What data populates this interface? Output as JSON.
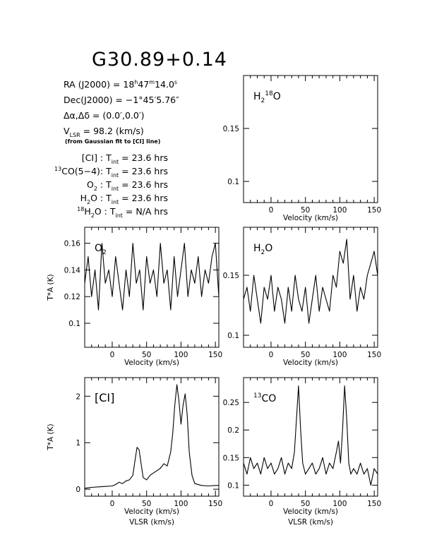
{
  "header": {
    "title": "G30.89+0.14",
    "ra_prefix": "RA (J2000) =  18",
    "ra_h": "h",
    "ra_min": "47",
    "ra_m": "m",
    "ra_sec": "14.0",
    "ra_s": "s",
    "dec_prefix": "Dec(J2000) = −1°45′5.76″",
    "offset": "Δα,Δδ = (0.0′,0.0′)",
    "vlsr_v": "V",
    "vlsr_sub": "LSR",
    "vlsr_rest": " = 98.2 (km/s)",
    "vlsr_note": "(from Gaussian fit to [CI] line)"
  },
  "integrations": [
    {
      "pre": "",
      "sup": "",
      "name": "[CI]",
      "sub": "",
      "name2": "",
      "value": " : T",
      "tsub": "int",
      "eq": " = 23.6 hrs"
    },
    {
      "pre": "",
      "sup": "13",
      "name": "CO(5−4):",
      "sub": "",
      "name2": "",
      "value": " T",
      "tsub": "int",
      "eq": " = 23.6 hrs"
    },
    {
      "pre": "",
      "sup": "",
      "name": "O",
      "sub": "2",
      "name2": "",
      "value": " : T",
      "tsub": "int",
      "eq": " = 23.6 hrs"
    },
    {
      "pre": "",
      "sup": "",
      "name": "H",
      "sub": "2",
      "name2": "O",
      "value": " : T",
      "tsub": "int",
      "eq": " = 23.6 hrs"
    },
    {
      "pre": "",
      "sup": "18",
      "name": "H",
      "sub": "2",
      "name2": "O",
      "value": " : T",
      "tsub": "int",
      "eq": " = N/A hrs"
    }
  ],
  "chart_data": [
    {
      "id": "h218o",
      "type": "line",
      "label": {
        "main": "H",
        "sub": "2",
        "sup": "18",
        "tail": "O"
      },
      "xlabel": "Velocity (km/s)",
      "ylabel": "",
      "xlim": [
        -40,
        155
      ],
      "ylim": [
        0.08,
        0.2
      ],
      "xticks": [
        0,
        50,
        100,
        150
      ],
      "yticks": [
        0.1,
        0.15
      ],
      "ytick_labels": [
        "0.1",
        "0.15"
      ],
      "x": [],
      "y": []
    },
    {
      "id": "o2",
      "type": "line",
      "label": {
        "main": "O",
        "sub": "2",
        "sup": "",
        "tail": ""
      },
      "xlabel": "Velocity (km/s)",
      "ylabel": "T*A (K)",
      "xlim": [
        -40,
        155
      ],
      "ylim": [
        0.082,
        0.172
      ],
      "xticks": [
        0,
        50,
        100,
        150
      ],
      "yticks": [
        0.1,
        0.12,
        0.14,
        0.16
      ],
      "ytick_labels": [
        "0.1",
        "0.12",
        "0.14",
        "0.16"
      ],
      "x": [
        -40,
        -35,
        -30,
        -25,
        -20,
        -15,
        -10,
        -5,
        0,
        5,
        10,
        15,
        20,
        25,
        30,
        35,
        40,
        45,
        50,
        55,
        60,
        65,
        70,
        75,
        80,
        85,
        90,
        95,
        100,
        105,
        110,
        115,
        120,
        125,
        130,
        135,
        140,
        145,
        150,
        155
      ],
      "y": [
        0.13,
        0.15,
        0.12,
        0.14,
        0.11,
        0.16,
        0.13,
        0.14,
        0.12,
        0.15,
        0.13,
        0.11,
        0.14,
        0.12,
        0.16,
        0.13,
        0.14,
        0.11,
        0.15,
        0.13,
        0.14,
        0.12,
        0.16,
        0.13,
        0.14,
        0.11,
        0.15,
        0.12,
        0.14,
        0.16,
        0.12,
        0.14,
        0.13,
        0.15,
        0.12,
        0.14,
        0.13,
        0.15,
        0.16,
        0.12
      ]
    },
    {
      "id": "h2o",
      "type": "line",
      "label": {
        "main": "H",
        "sub": "2",
        "sup": "",
        "tail": "O"
      },
      "xlabel": "Velocity (km/s)",
      "ylabel": "",
      "xlim": [
        -40,
        155
      ],
      "ylim": [
        0.09,
        0.19
      ],
      "xticks": [
        0,
        50,
        100,
        150
      ],
      "yticks": [
        0.1,
        0.15
      ],
      "ytick_labels": [
        "0.1",
        "0.15"
      ],
      "x": [
        -40,
        -35,
        -30,
        -25,
        -20,
        -15,
        -10,
        -5,
        0,
        5,
        10,
        15,
        20,
        25,
        30,
        35,
        40,
        45,
        50,
        55,
        60,
        65,
        70,
        75,
        80,
        85,
        90,
        95,
        100,
        105,
        110,
        115,
        120,
        125,
        130,
        135,
        140,
        145,
        150,
        155
      ],
      "y": [
        0.13,
        0.14,
        0.12,
        0.15,
        0.13,
        0.11,
        0.14,
        0.13,
        0.15,
        0.12,
        0.14,
        0.13,
        0.11,
        0.14,
        0.12,
        0.15,
        0.13,
        0.12,
        0.14,
        0.11,
        0.13,
        0.15,
        0.12,
        0.14,
        0.13,
        0.12,
        0.15,
        0.14,
        0.17,
        0.16,
        0.18,
        0.13,
        0.15,
        0.12,
        0.14,
        0.13,
        0.15,
        0.16,
        0.17,
        0.15
      ]
    },
    {
      "id": "ci",
      "type": "line",
      "label": {
        "main": "[CI]",
        "sub": "",
        "sup": "",
        "tail": ""
      },
      "xlabel": "Velocity (km/s)",
      "xlabel2": "VLSR (km/s)",
      "ylabel": "T*A (K)",
      "xlim": [
        -40,
        155
      ],
      "ylim": [
        -0.15,
        2.4
      ],
      "xticks": [
        0,
        50,
        100,
        150
      ],
      "yticks": [
        0,
        1,
        2
      ],
      "ytick_labels": [
        "0",
        "1",
        "2"
      ],
      "x": [
        -40,
        -30,
        -20,
        -10,
        0,
        5,
        10,
        15,
        20,
        25,
        30,
        33,
        36,
        39,
        42,
        45,
        50,
        55,
        60,
        65,
        70,
        75,
        80,
        85,
        88,
        91,
        94,
        97,
        100,
        103,
        106,
        109,
        112,
        116,
        120,
        130,
        140,
        150,
        155
      ],
      "y": [
        0.02,
        0.04,
        0.05,
        0.06,
        0.07,
        0.1,
        0.15,
        0.12,
        0.18,
        0.2,
        0.3,
        0.6,
        0.9,
        0.85,
        0.55,
        0.25,
        0.2,
        0.3,
        0.35,
        0.4,
        0.45,
        0.55,
        0.5,
        0.8,
        1.2,
        1.8,
        2.25,
        1.9,
        1.4,
        1.8,
        2.05,
        1.6,
        0.8,
        0.3,
        0.12,
        0.08,
        0.07,
        0.08,
        0.08
      ]
    },
    {
      "id": "13co",
      "type": "line",
      "label": {
        "main": "CO",
        "sub": "",
        "sup": "13",
        "tail": ""
      },
      "xlabel": "Velocity (km/s)",
      "xlabel2": "VLSR (km/s)",
      "ylabel": "",
      "xlim": [
        -40,
        155
      ],
      "ylim": [
        0.08,
        0.295
      ],
      "xticks": [
        0,
        50,
        100,
        150
      ],
      "yticks": [
        0.1,
        0.15,
        0.2,
        0.25
      ],
      "ytick_labels": [
        "0.1",
        "0.15",
        "0.2",
        "0.25"
      ],
      "x": [
        -40,
        -35,
        -30,
        -25,
        -20,
        -15,
        -10,
        -5,
        0,
        5,
        10,
        15,
        20,
        25,
        30,
        34,
        37,
        40,
        43,
        46,
        50,
        55,
        60,
        65,
        70,
        75,
        80,
        85,
        90,
        95,
        98,
        101,
        104,
        107,
        110,
        113,
        116,
        120,
        125,
        130,
        135,
        140,
        145,
        150,
        155
      ],
      "y": [
        0.14,
        0.12,
        0.15,
        0.13,
        0.14,
        0.12,
        0.15,
        0.13,
        0.14,
        0.12,
        0.13,
        0.15,
        0.12,
        0.14,
        0.13,
        0.16,
        0.22,
        0.28,
        0.2,
        0.14,
        0.12,
        0.13,
        0.14,
        0.12,
        0.13,
        0.15,
        0.12,
        0.14,
        0.13,
        0.16,
        0.18,
        0.14,
        0.2,
        0.28,
        0.22,
        0.14,
        0.12,
        0.13,
        0.12,
        0.14,
        0.12,
        0.13,
        0.1,
        0.13,
        0.12
      ]
    }
  ]
}
